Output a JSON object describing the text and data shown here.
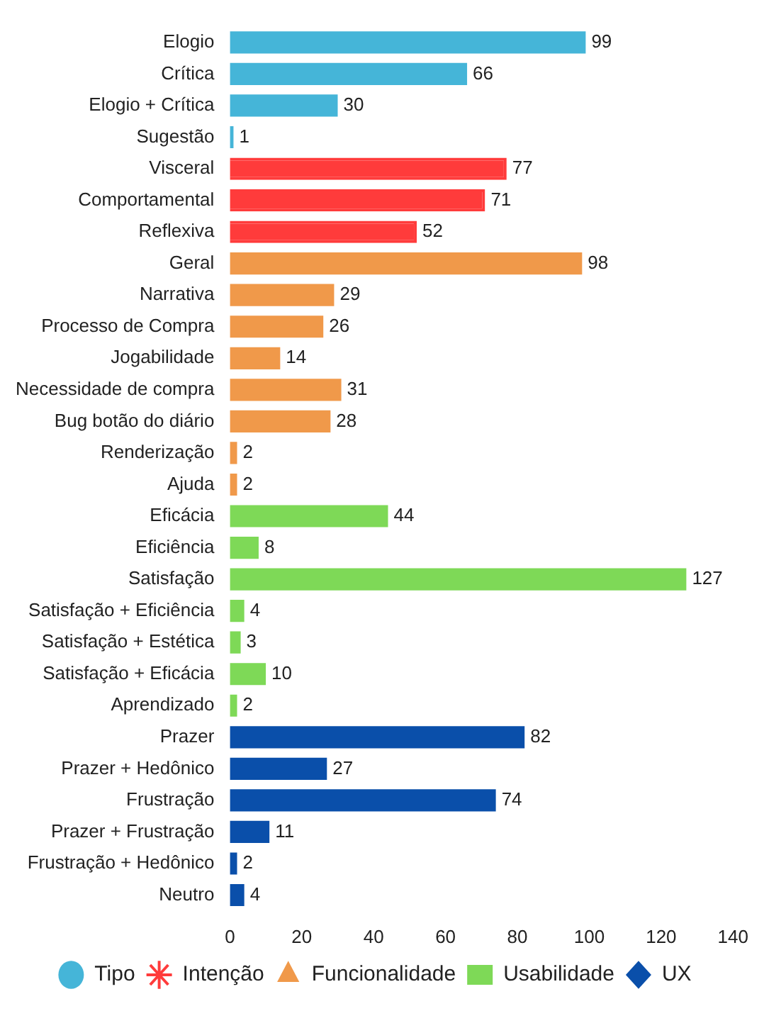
{
  "chart_data": {
    "type": "bar",
    "orientation": "horizontal",
    "categories": [
      "Elogio",
      "Crítica",
      "Elogio + Crítica",
      "Sugestão",
      "Visceral",
      "Comportamental",
      "Reflexiva",
      "Geral",
      "Narrativa",
      "Processo de Compra",
      "Jogabilidade",
      "Necessidade de compra",
      "Bug botão do diário",
      "Renderização",
      "Ajuda",
      "Eficácia",
      "Eficiência",
      "Satisfação",
      "Satisfação + Eficiência",
      "Satisfação + Estética",
      "Satisfação + Eficácia",
      "Aprendizado",
      "Prazer",
      "Prazer + Hedônico",
      "Frustração",
      "Prazer + Frustração",
      "Frustração + Hedônico",
      "Neutro"
    ],
    "series": [
      {
        "name": "Tipo",
        "color": "#45b5d8",
        "marker": "circle",
        "values": [
          99,
          66,
          30,
          1,
          null,
          null,
          null,
          null,
          null,
          null,
          null,
          null,
          null,
          null,
          null,
          null,
          null,
          null,
          null,
          null,
          null,
          null,
          null,
          null,
          null,
          null,
          null,
          null
        ]
      },
      {
        "name": "Intenção",
        "color": "#ff3b3b",
        "marker": "star",
        "values": [
          null,
          null,
          null,
          null,
          77,
          71,
          52,
          null,
          null,
          null,
          null,
          null,
          null,
          null,
          null,
          null,
          null,
          null,
          null,
          null,
          null,
          null,
          null,
          null,
          null,
          null,
          null,
          null
        ]
      },
      {
        "name": "Funcionalidade",
        "color": "#f0994a",
        "marker": "triangle",
        "values": [
          null,
          null,
          null,
          null,
          null,
          null,
          null,
          98,
          29,
          26,
          14,
          31,
          28,
          2,
          2,
          null,
          null,
          null,
          null,
          null,
          null,
          null,
          null,
          null,
          null,
          null,
          null,
          null
        ]
      },
      {
        "name": "Usabilidade",
        "color": "#7ed957",
        "marker": "square",
        "values": [
          null,
          null,
          null,
          null,
          null,
          null,
          null,
          null,
          null,
          null,
          null,
          null,
          null,
          null,
          null,
          44,
          8,
          127,
          4,
          3,
          10,
          2,
          null,
          null,
          null,
          null,
          null,
          null
        ]
      },
      {
        "name": "UX",
        "color": "#0a4faa",
        "marker": "diamond",
        "values": [
          null,
          null,
          null,
          null,
          null,
          null,
          null,
          null,
          null,
          null,
          null,
          null,
          null,
          null,
          null,
          null,
          null,
          null,
          null,
          null,
          null,
          null,
          82,
          27,
          74,
          11,
          2,
          4
        ]
      }
    ],
    "xlim": [
      0,
      140
    ],
    "xticks": [
      0,
      20,
      40,
      60,
      80,
      100,
      120,
      140
    ],
    "grid": false,
    "legend": "bottom",
    "data_labels": true
  }
}
